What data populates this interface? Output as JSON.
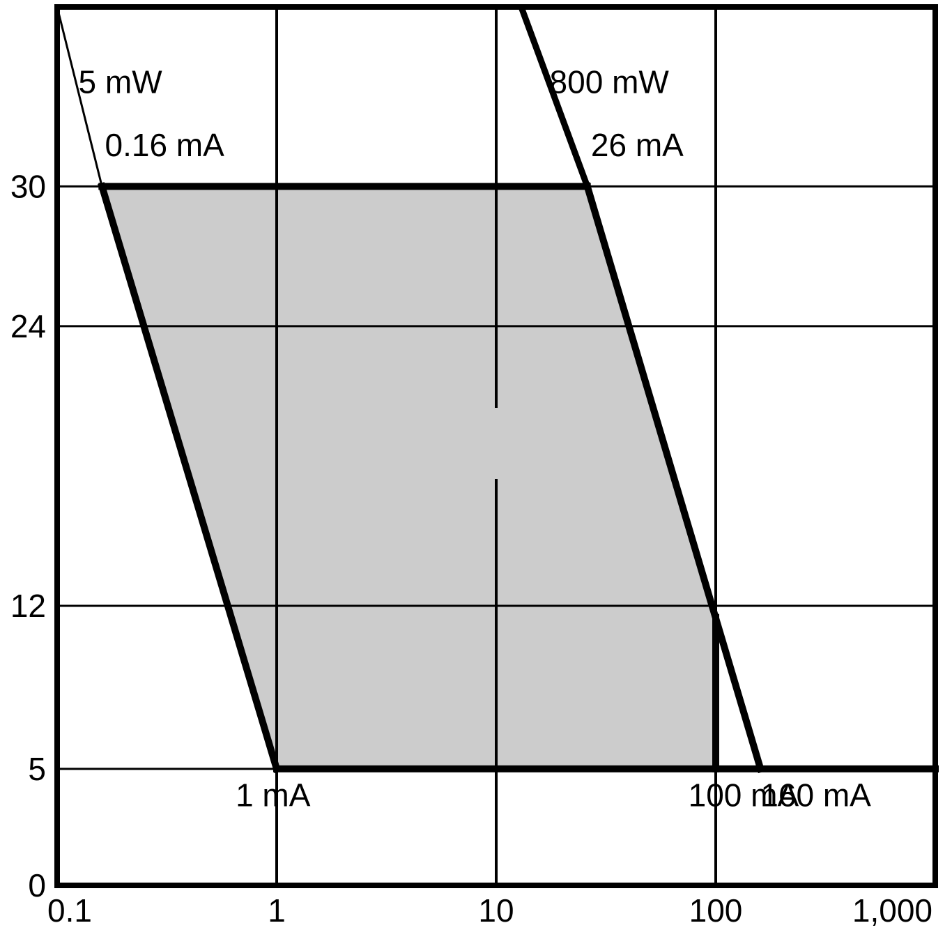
{
  "chart_data": {
    "type": "area",
    "x_scale": "log",
    "xlim": [
      0.1,
      1000
    ],
    "ylim": [
      0,
      30
    ],
    "x_ticks": [
      {
        "value": 0.1,
        "label": "0.1"
      },
      {
        "value": 1,
        "label": "1"
      },
      {
        "value": 10,
        "label": "10"
      },
      {
        "value": 100,
        "label": "100"
      },
      {
        "value": 1000,
        "label": "1,000"
      }
    ],
    "y_ticks": [
      {
        "value": 0,
        "label": "0"
      },
      {
        "value": 5,
        "label": "5"
      },
      {
        "value": 12,
        "label": "12"
      },
      {
        "value": 24,
        "label": "24"
      },
      {
        "value": 30,
        "label": "30"
      }
    ],
    "grid": true,
    "title": "",
    "xlabel": "",
    "ylabel": "",
    "operating_region": {
      "fill": "#cccccc",
      "points": [
        {
          "x": 0.16,
          "y": 30
        },
        {
          "x": 26,
          "y": 30
        },
        {
          "x": 100,
          "y": 11.5
        },
        {
          "x": 100,
          "y": 5
        },
        {
          "x": 1,
          "y": 5
        }
      ]
    },
    "power_curves": [
      {
        "power_mw": 5,
        "points": [
          {
            "x": 0.1,
            "y": 38
          },
          {
            "x": 0.16,
            "y": 30
          }
        ]
      },
      {
        "power_mw": 800,
        "points": [
          {
            "x": 13,
            "y": 38
          },
          {
            "x": 26,
            "y": 30
          },
          {
            "x": 160,
            "y": 5
          }
        ]
      }
    ],
    "boundary_lines": [
      {
        "name": "top-30v",
        "points": [
          {
            "x": 0.16,
            "y": 30
          },
          {
            "x": 26,
            "y": 30
          }
        ]
      },
      {
        "name": "left-5mw",
        "points": [
          {
            "x": 0.16,
            "y": 30
          },
          {
            "x": 1,
            "y": 5
          }
        ]
      },
      {
        "name": "right-800mw",
        "points": [
          {
            "x": 26,
            "y": 30
          },
          {
            "x": 160,
            "y": 5
          }
        ]
      },
      {
        "name": "bottom-5v",
        "points": [
          {
            "x": 1,
            "y": 5
          },
          {
            "x": 1000,
            "y": 5
          }
        ]
      },
      {
        "name": "right-100ma",
        "points": [
          {
            "x": 100,
            "y": 11.5
          },
          {
            "x": 100,
            "y": 5
          }
        ]
      }
    ],
    "annotations": [
      {
        "id": "label-5mw",
        "text": "5 mW",
        "x": 0.125,
        "y": 34,
        "anchor": "start"
      },
      {
        "id": "label-0-16ma",
        "text": "0.16 mA",
        "x": 0.165,
        "y": 31.3,
        "anchor": "start"
      },
      {
        "id": "label-800mw",
        "text": "800 mW",
        "x": 17.5,
        "y": 34,
        "anchor": "start"
      },
      {
        "id": "label-26ma",
        "text": "26 mA",
        "x": 27,
        "y": 31.3,
        "anchor": "start"
      },
      {
        "id": "label-1ma",
        "text": "1 mA",
        "x": 0.65,
        "y": 3.4,
        "anchor": "start"
      },
      {
        "id": "label-100ma",
        "text": "100 mA",
        "x": 75,
        "y": 3.4,
        "anchor": "start"
      },
      {
        "id": "label-160ma",
        "text": "160 mA",
        "x": 160,
        "y": 3.4,
        "anchor": "start"
      }
    ]
  }
}
